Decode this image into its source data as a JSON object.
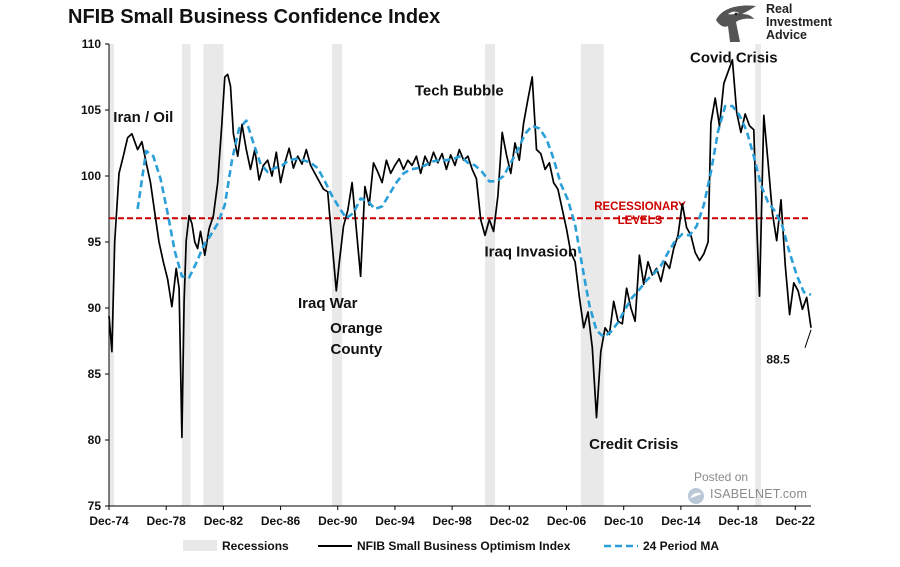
{
  "chart_data": {
    "type": "line",
    "title": "NFIB Small Business Confidence Index",
    "xlabel": "",
    "ylabel": "",
    "xlim": [
      1974.9,
      2024.0
    ],
    "ylim": [
      75,
      110
    ],
    "yticks": [
      75,
      80,
      85,
      90,
      95,
      100,
      105,
      110
    ],
    "xtick_labels": [
      "Dec-74",
      "Dec-78",
      "Dec-82",
      "Dec-86",
      "Dec-90",
      "Dec-94",
      "Dec-98",
      "Dec-02",
      "Dec-06",
      "Dec-10",
      "Dec-14",
      "Dec-18",
      "Dec-22"
    ],
    "xtick_values": [
      1974.9,
      1978.9,
      1982.9,
      1986.9,
      1990.9,
      1994.9,
      1998.9,
      2002.9,
      2006.9,
      2010.9,
      2014.9,
      2018.9,
      2022.9
    ],
    "recessions": [
      {
        "start": 1974.9,
        "end": 1975.25
      },
      {
        "start": 1980.0,
        "end": 1980.6
      },
      {
        "start": 1981.5,
        "end": 1982.9
      },
      {
        "start": 1990.5,
        "end": 1991.2
      },
      {
        "start": 2001.2,
        "end": 2001.9
      },
      {
        "start": 2007.9,
        "end": 2009.5
      },
      {
        "start": 2020.1,
        "end": 2020.5
      }
    ],
    "threshold": {
      "value": 96.8,
      "label": "RECESSIONARY LEVELS",
      "label_lines": [
        "RECESSIONARY",
        "LEVELS"
      ],
      "color": "#cc0000"
    },
    "series": [
      {
        "name": "NFIB Small Business Optimism Index",
        "style": "solid",
        "color": "#000000",
        "x": [
          1974.9,
          1975.1,
          1975.3,
          1975.6,
          1975.9,
          1976.2,
          1976.5,
          1976.9,
          1977.2,
          1977.5,
          1977.8,
          1978.1,
          1978.4,
          1978.7,
          1979.0,
          1979.3,
          1979.6,
          1979.8,
          1980.0,
          1980.15,
          1980.3,
          1980.5,
          1980.7,
          1980.9,
          1981.1,
          1981.3,
          1981.6,
          1981.9,
          1982.2,
          1982.5,
          1982.8,
          1983.0,
          1983.2,
          1983.4,
          1983.6,
          1983.9,
          1984.2,
          1984.5,
          1984.8,
          1985.1,
          1985.4,
          1985.7,
          1986.0,
          1986.3,
          1986.6,
          1986.9,
          1987.2,
          1987.5,
          1987.8,
          1988.1,
          1988.4,
          1988.7,
          1989.0,
          1989.3,
          1989.6,
          1989.9,
          1990.2,
          1990.5,
          1990.8,
          1991.0,
          1991.3,
          1991.6,
          1991.9,
          1992.2,
          1992.5,
          1992.8,
          1993.1,
          1993.4,
          1993.7,
          1994.0,
          1994.3,
          1994.6,
          1994.9,
          1995.2,
          1995.5,
          1995.8,
          1996.1,
          1996.4,
          1996.7,
          1997.0,
          1997.3,
          1997.6,
          1997.9,
          1998.2,
          1998.5,
          1998.8,
          1999.1,
          1999.4,
          1999.7,
          2000.0,
          2000.3,
          2000.6,
          2000.9,
          2001.2,
          2001.5,
          2001.8,
          2002.1,
          2002.4,
          2002.7,
          2003.0,
          2003.3,
          2003.6,
          2003.9,
          2004.2,
          2004.5,
          2004.8,
          2005.1,
          2005.4,
          2005.7,
          2006.0,
          2006.3,
          2006.6,
          2006.9,
          2007.2,
          2007.5,
          2007.8,
          2008.1,
          2008.4,
          2008.7,
          2009.0,
          2009.3,
          2009.6,
          2009.9,
          2010.2,
          2010.5,
          2010.8,
          2011.1,
          2011.4,
          2011.7,
          2012.0,
          2012.3,
          2012.6,
          2012.9,
          2013.2,
          2013.5,
          2013.8,
          2014.1,
          2014.4,
          2014.7,
          2015.0,
          2015.3,
          2015.6,
          2015.9,
          2016.2,
          2016.5,
          2016.8,
          2017.0,
          2017.3,
          2017.6,
          2017.9,
          2018.2,
          2018.5,
          2018.8,
          2019.1,
          2019.4,
          2019.7,
          2020.0,
          2020.2,
          2020.4,
          2020.7,
          2021.0,
          2021.3,
          2021.6,
          2021.9,
          2022.2,
          2022.5,
          2022.8,
          2023.1,
          2023.4,
          2023.7,
          2024.0
        ],
        "values": [
          89.4,
          86.7,
          95.0,
          100.2,
          101.5,
          102.9,
          103.2,
          102.0,
          102.6,
          101.0,
          99.5,
          97.2,
          95.0,
          93.5,
          92.2,
          90.1,
          93.0,
          91.5,
          80.2,
          90.5,
          95.1,
          97.0,
          96.4,
          95.0,
          94.5,
          95.8,
          94.0,
          96.0,
          97.0,
          99.5,
          104.0,
          107.5,
          107.7,
          106.8,
          103.2,
          101.5,
          103.9,
          102.0,
          100.5,
          102.0,
          99.7,
          100.8,
          101.2,
          100.0,
          101.8,
          99.5,
          101.0,
          102.1,
          100.6,
          101.5,
          100.9,
          102.0,
          100.8,
          100.2,
          99.6,
          99.0,
          98.8,
          95.0,
          91.3,
          93.4,
          96.2,
          97.4,
          99.5,
          96.0,
          92.4,
          99.2,
          97.8,
          101.0,
          100.3,
          99.5,
          101.2,
          100.2,
          100.8,
          101.3,
          100.5,
          101.2,
          100.8,
          101.5,
          100.2,
          101.5,
          100.8,
          101.8,
          101.0,
          101.7,
          100.5,
          101.6,
          100.8,
          102.0,
          101.2,
          101.5,
          100.5,
          99.8,
          96.7,
          95.5,
          96.7,
          95.8,
          98.5,
          103.3,
          101.6,
          100.2,
          102.5,
          101.2,
          104.0,
          105.8,
          107.5,
          102.0,
          101.7,
          100.5,
          101.0,
          99.5,
          99.0,
          97.5,
          96.0,
          94.2,
          93.5,
          90.8,
          88.5,
          89.7,
          87.0,
          81.7,
          86.7,
          88.5,
          88.0,
          90.5,
          89.0,
          88.8,
          91.5,
          90.0,
          89.0,
          94.0,
          91.8,
          93.5,
          92.5,
          93.0,
          92.0,
          93.5,
          93.0,
          94.5,
          95.5,
          97.9,
          96.1,
          95.5,
          94.2,
          93.6,
          94.1,
          95.0,
          104.0,
          105.9,
          103.8,
          107.0,
          107.9,
          108.8,
          104.8,
          103.3,
          104.7,
          103.8,
          103.5,
          96.4,
          90.9,
          104.6,
          101.0,
          97.2,
          95.1,
          98.2,
          93.2,
          89.5,
          91.9,
          91.3,
          89.9,
          90.8,
          88.5
        ],
        "last_value_label": "88.5"
      },
      {
        "name": "24 Period MA",
        "style": "dashed",
        "color": "#2a9fd8",
        "x": [
          1976.9,
          1977.5,
          1978.0,
          1978.5,
          1979.0,
          1979.5,
          1980.0,
          1980.5,
          1981.0,
          1981.5,
          1982.0,
          1982.5,
          1983.0,
          1983.5,
          1984.0,
          1984.5,
          1985.0,
          1985.5,
          1986.0,
          1986.5,
          1987.0,
          1987.5,
          1988.0,
          1988.5,
          1989.0,
          1989.5,
          1990.0,
          1990.5,
          1991.0,
          1991.5,
          1992.0,
          1992.5,
          1993.0,
          1993.5,
          1994.0,
          1994.5,
          1995.0,
          1995.5,
          1996.0,
          1996.5,
          1997.0,
          1997.5,
          1998.0,
          1998.5,
          1999.0,
          1999.5,
          2000.0,
          2000.5,
          2001.0,
          2001.5,
          2002.0,
          2002.5,
          2003.0,
          2003.5,
          2004.0,
          2004.5,
          2005.0,
          2005.5,
          2006.0,
          2006.5,
          2007.0,
          2007.5,
          2008.0,
          2008.5,
          2009.0,
          2009.5,
          2010.0,
          2010.5,
          2011.0,
          2011.5,
          2012.0,
          2012.5,
          2013.0,
          2013.5,
          2014.0,
          2014.5,
          2015.0,
          2015.5,
          2016.0,
          2016.5,
          2017.0,
          2017.5,
          2018.0,
          2018.5,
          2019.0,
          2019.5,
          2020.0,
          2020.5,
          2021.0,
          2021.5,
          2022.0,
          2022.5,
          2023.0,
          2023.5,
          2024.0
        ],
        "values": [
          97.5,
          101.9,
          101.5,
          99.8,
          97.2,
          94.3,
          92.4,
          92.3,
          93.4,
          94.7,
          95.5,
          96.4,
          97.8,
          101.2,
          103.6,
          104.2,
          102.5,
          100.9,
          100.3,
          100.6,
          100.8,
          101.2,
          101.3,
          101.2,
          101.0,
          100.6,
          99.6,
          98.5,
          97.6,
          96.8,
          97.2,
          98.3,
          98.1,
          97.5,
          97.7,
          98.6,
          99.5,
          100.2,
          100.5,
          100.6,
          100.8,
          101.1,
          101.2,
          101.2,
          101.3,
          101.5,
          101.0,
          100.8,
          100.3,
          99.6,
          99.6,
          100.0,
          101.0,
          102.0,
          103.2,
          103.8,
          103.6,
          102.8,
          101.3,
          99.4,
          98.2,
          96.3,
          93.2,
          90.2,
          88.3,
          87.8,
          88.2,
          88.9,
          89.9,
          90.8,
          91.4,
          92.1,
          92.6,
          93.2,
          94.2,
          95.1,
          95.6,
          95.5,
          96.2,
          97.8,
          100.3,
          103.4,
          105.3,
          105.3,
          104.6,
          103.4,
          101.5,
          99.3,
          98.0,
          97.3,
          96.2,
          94.2,
          92.5,
          91.2,
          91.0
        ]
      }
    ],
    "legend": {
      "position": "bottom",
      "entries": [
        "Recessions",
        "NFIB Small Business Optimism Index",
        "24 Period MA"
      ]
    },
    "annotations": [
      {
        "text": "Iran / Oil",
        "x": 1977.3,
        "y": 104.1
      },
      {
        "text": "Iraq War",
        "x": 1990.2,
        "y": 90.0
      },
      {
        "text": "Orange",
        "x": 1992.2,
        "y": 88.1
      },
      {
        "text": "County",
        "x": 1992.2,
        "y": 86.5
      },
      {
        "text": "Tech Bubble",
        "x": 1999.4,
        "y": 106.1
      },
      {
        "text": "Iraq Invasion",
        "x": 2004.4,
        "y": 93.9
      },
      {
        "text": "Credit Crisis",
        "x": 2011.6,
        "y": 79.3
      },
      {
        "text": "Covid Crisis",
        "x": 2018.6,
        "y": 108.6
      },
      {
        "text": "88.5",
        "x": 2021.7,
        "y": 85.8
      }
    ]
  },
  "branding": {
    "line1": "Real",
    "line2": "Investment",
    "line3": "Advice",
    "posted_on": "Posted on",
    "site": "ISABELNET.com"
  }
}
